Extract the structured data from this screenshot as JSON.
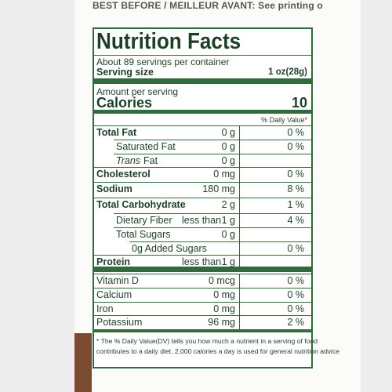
{
  "top_text": "BEST BEFORE / MEILLEUR AVANT: See printing o",
  "title": "Nutrition Facts",
  "servings": "About 89 servings per container",
  "serving_size_label": "Serving size",
  "serving_size": "1 oz(28g)",
  "amount_per_serving": "Amount per serving",
  "calories_label": "Calories",
  "calories": 10,
  "dv_header": "% Daily Value*",
  "nutrients": [
    {
      "name": "Total Fat",
      "amount": "0 g",
      "dv": "0 %"
    },
    {
      "name": "Saturated Fat",
      "amount": "0 g",
      "dv": "0 %"
    },
    {
      "name_italic": "Trans",
      "name": "Fat",
      "amount": "0 g"
    },
    {
      "name": "Cholesterol",
      "amount": "0 mg",
      "dv": "0 %"
    },
    {
      "name": "Sodium",
      "amount": "180 mg",
      "dv": "8 %"
    },
    {
      "name": "Total Carbohydrate",
      "amount": "2 g",
      "dv": "1 %"
    },
    {
      "name": "Dietary Fiber",
      "qualifier": "less than",
      "amount": "1 g",
      "dv": "4 %"
    },
    {
      "name": "Total Sugars",
      "amount": "0 g"
    },
    {
      "name": "0g Added Sugars",
      "dv": "0 %"
    },
    {
      "name": "Protein",
      "qualifier": "less than",
      "amount": "1 g"
    }
  ],
  "vitamins": [
    {
      "name": "Vitamin D",
      "amount": "0 mcg",
      "dv": "0 %"
    },
    {
      "name": "Calcium",
      "amount": "0 mg",
      "dv": "0 %"
    },
    {
      "name": "Iron",
      "amount": "0 mg",
      "dv": "0 %"
    },
    {
      "name": "Potassium",
      "amount": "96 mg",
      "dv": "2 %"
    }
  ],
  "footnote": [
    "* The % Daily Value(DV) tells you how much a nutrient in a serving of food",
    "contributes to a daily diet. 2,000 calories a day is used for general nutrition advice"
  ]
}
